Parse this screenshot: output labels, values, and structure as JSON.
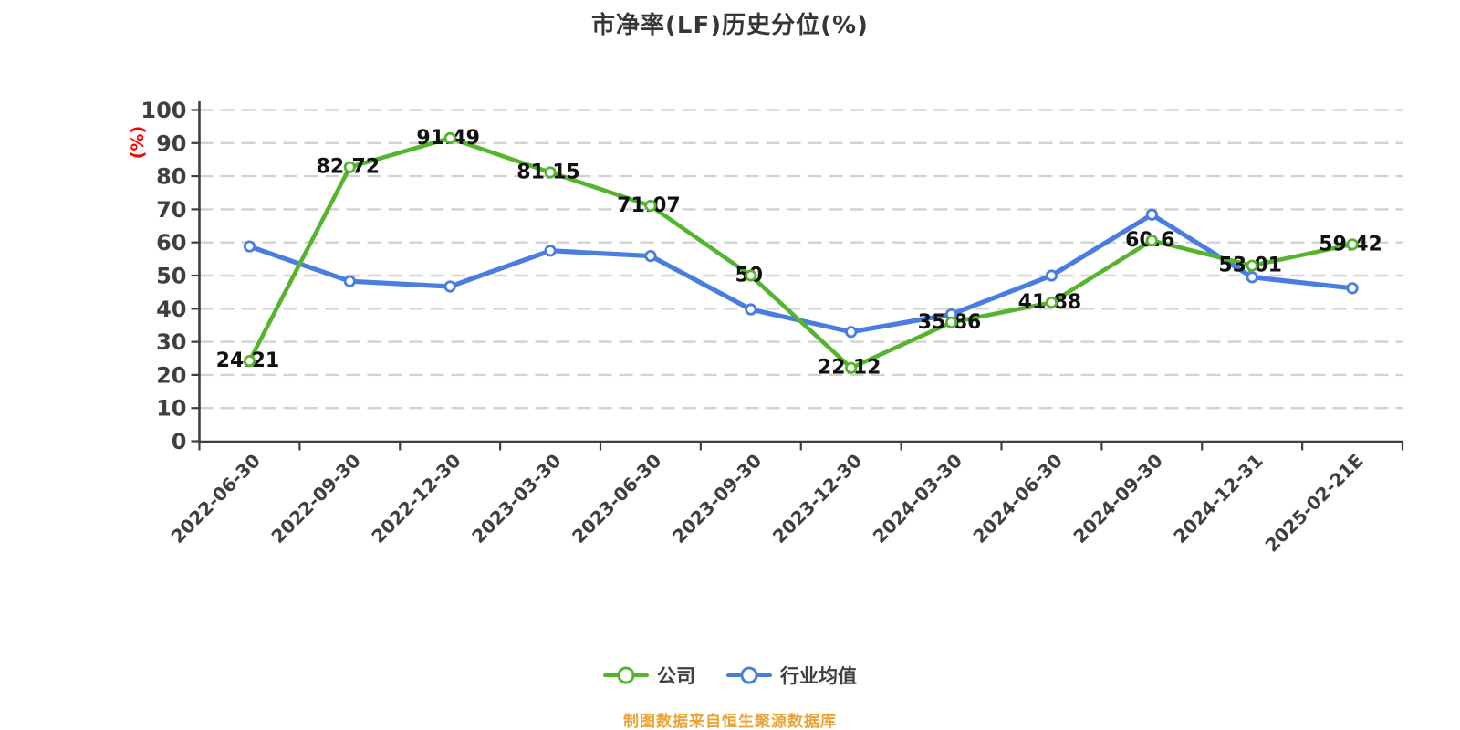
{
  "header": {
    "title": "市净率(LF)历史分位(%)"
  },
  "footer": {
    "text": "制图数据来自恒生聚源数据库",
    "color": "#eda233"
  },
  "colors": {
    "axis": "#3f3f3f",
    "grid": "#d2d2d2",
    "tick_text": "#3f3f3f",
    "data_label": "#111111",
    "y_unit_label": "#ff0000",
    "company_green": "#55b42d",
    "industry_blue": "#4a7de2",
    "marker_fill": "#ffffff"
  },
  "chart_data": {
    "type": "line",
    "title": "市净率(LF)历史分位(%)",
    "ylabel": "(%)",
    "xlabel": "",
    "ylim": [
      0,
      100
    ],
    "ytick_step": 10,
    "grid": "horizontal-dashed",
    "legend_position": "bottom",
    "categories": [
      "2022-06-30",
      "2022-09-30",
      "2022-12-30",
      "2023-03-30",
      "2023-06-30",
      "2023-09-30",
      "2023-12-30",
      "2024-03-30",
      "2024-06-30",
      "2024-09-30",
      "2024-12-31",
      "2025-02-21E"
    ],
    "series": [
      {
        "name": "公司",
        "color": "#55b42d",
        "marker": "circle-white-fill",
        "data_labels_shown": true,
        "values": [
          24.21,
          82.72,
          91.49,
          81.15,
          71.07,
          50,
          22.12,
          35.86,
          41.88,
          60.6,
          53.01,
          59.42
        ],
        "labels": [
          "24.21",
          "82.72",
          "91.49",
          "81.15",
          "71.07",
          "50",
          "22.12",
          "35.86",
          "41.88",
          "60.6",
          "53.01",
          "59.42"
        ]
      },
      {
        "name": "行业均值",
        "color": "#4a7de2",
        "marker": "circle-white-fill",
        "data_labels_shown": false,
        "values": [
          58.8,
          48.3,
          46.7,
          57.5,
          55.9,
          39.8,
          33.0,
          38.3,
          50.0,
          68.4,
          49.5,
          46.2
        ]
      }
    ],
    "ytick_labels": [
      "0",
      "10",
      "20",
      "30",
      "40",
      "50",
      "60",
      "70",
      "80",
      "90",
      "100"
    ]
  }
}
